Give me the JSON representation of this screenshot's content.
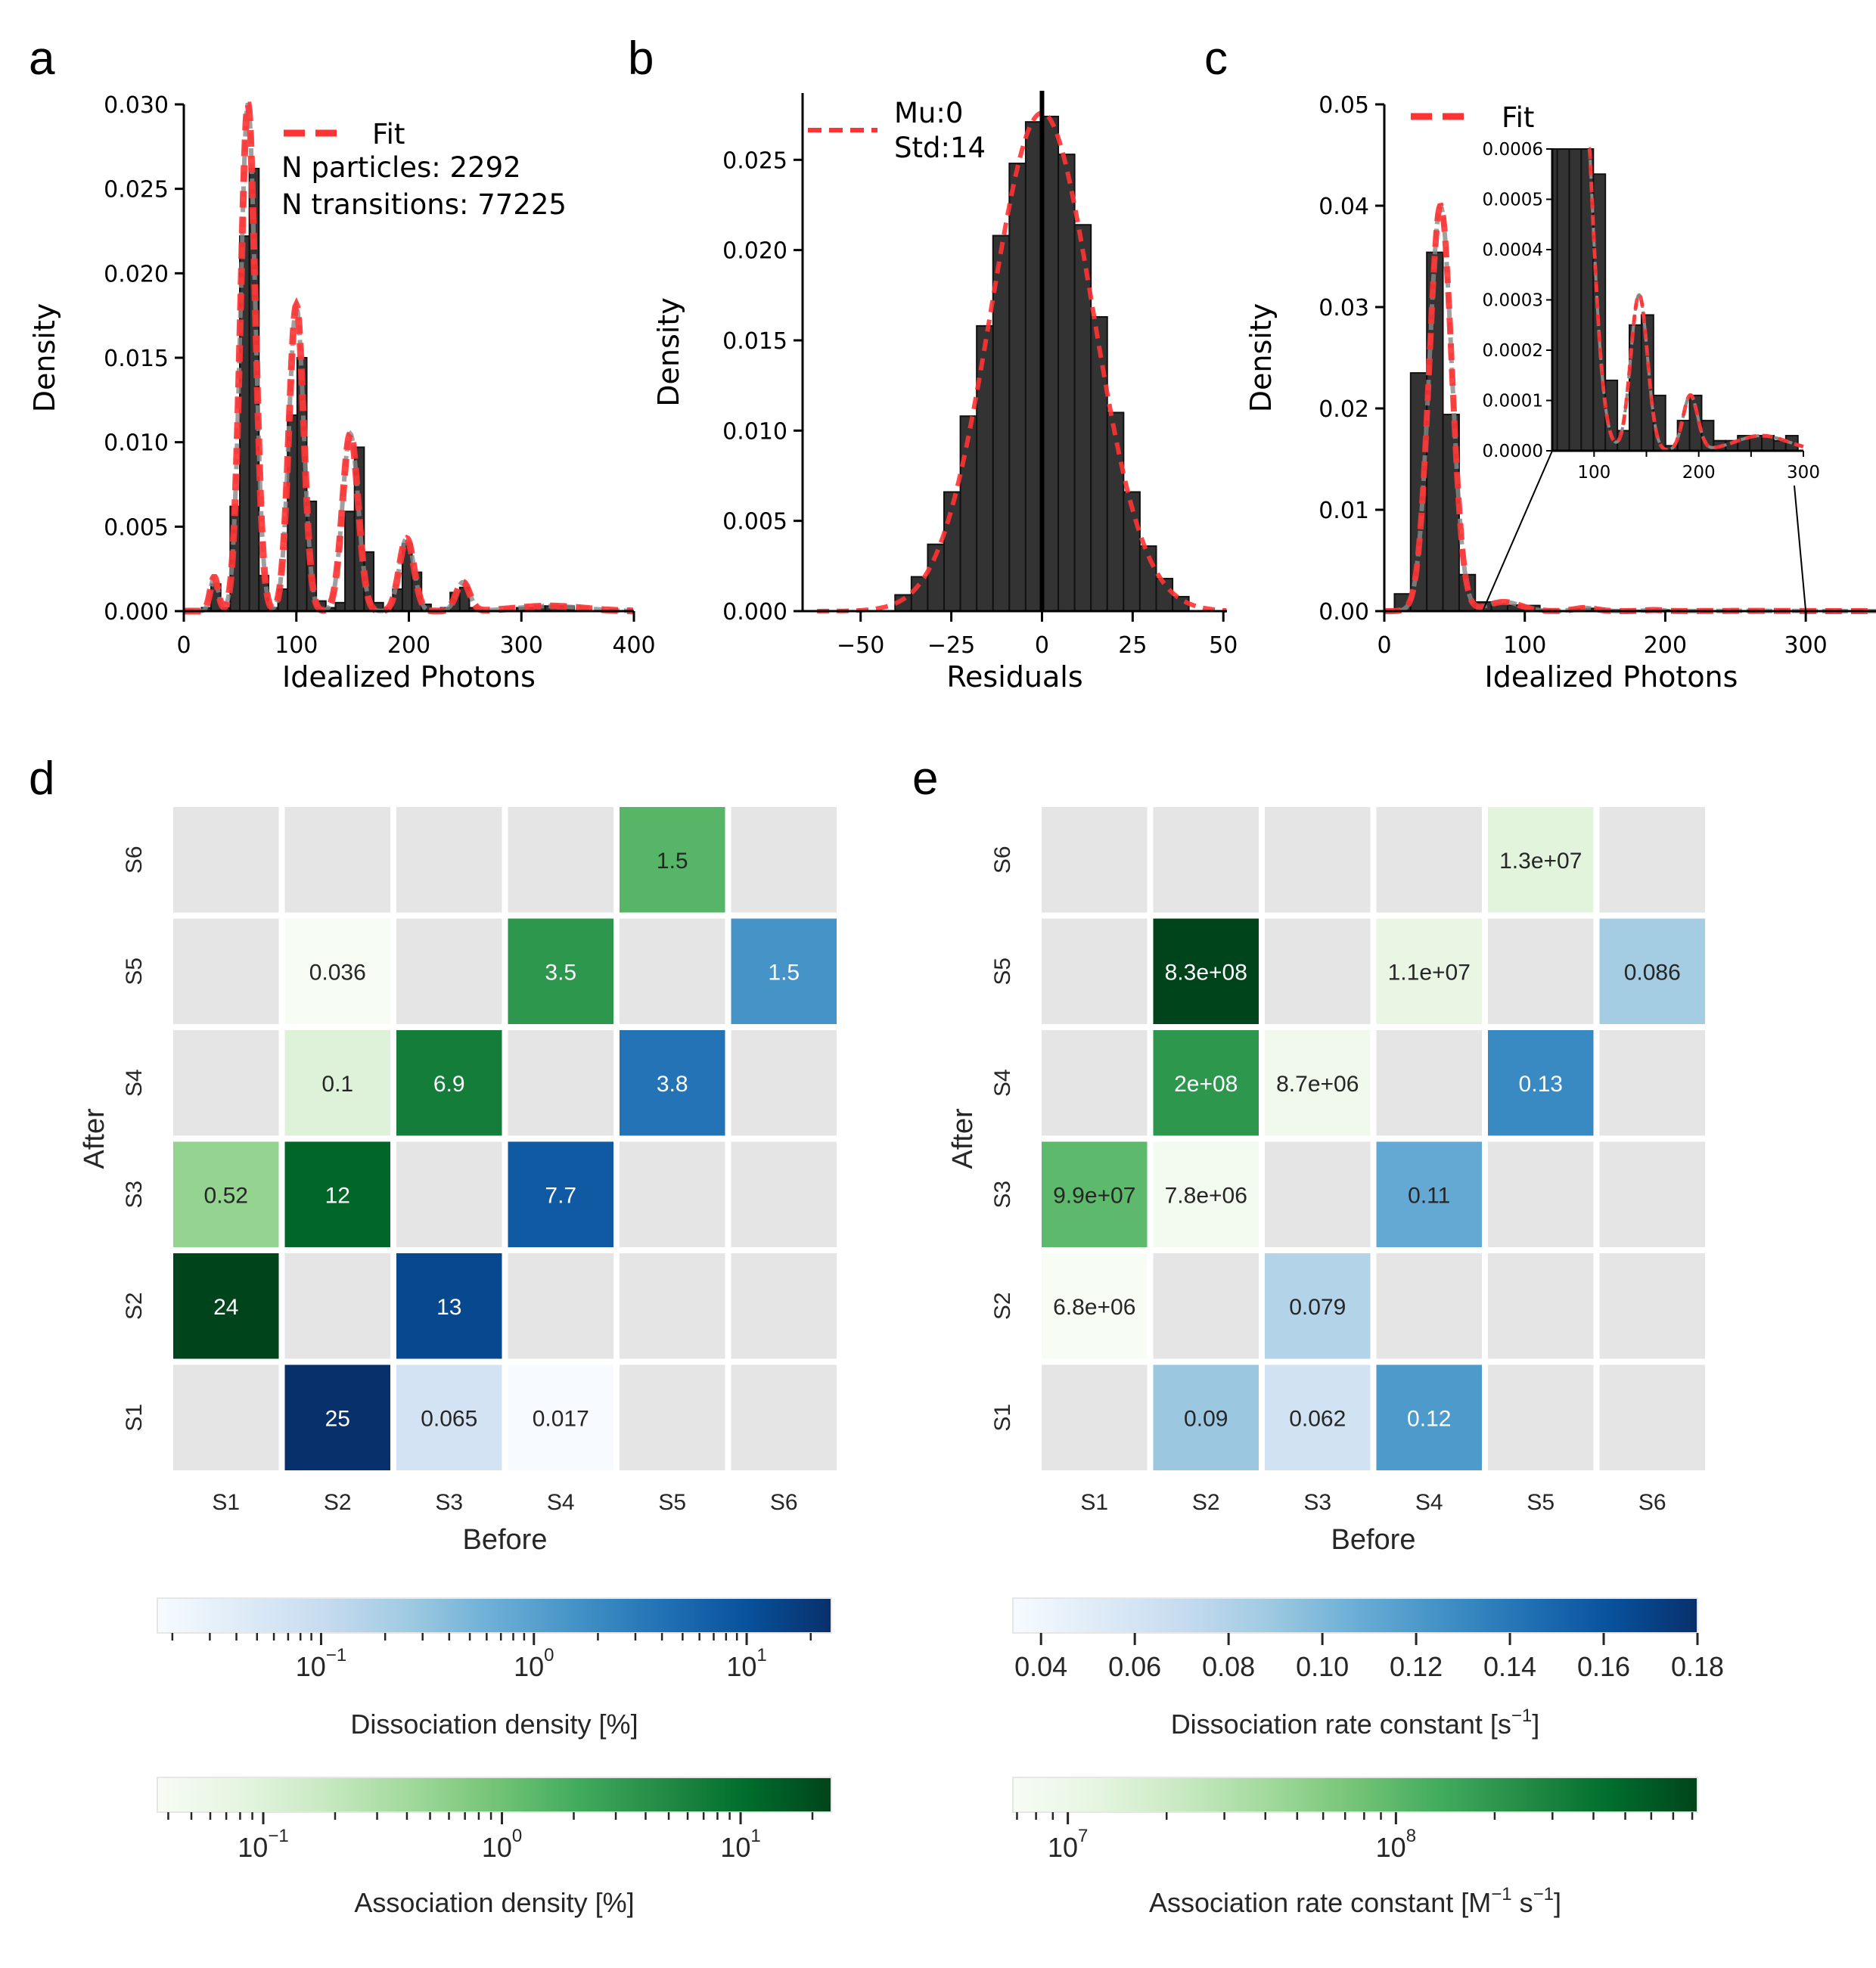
{
  "panels": {
    "a": "a",
    "b": "b",
    "c": "c",
    "d": "d",
    "e": "e"
  },
  "chart_data": [
    {
      "id": "a",
      "type": "bar",
      "title": "",
      "xlabel": "Idealized Photons",
      "ylabel": "Density",
      "xlim": [
        0,
        400
      ],
      "ylim": [
        0,
        0.03
      ],
      "xticks": [
        0,
        100,
        200,
        300,
        400
      ],
      "yticks": [
        "0.000",
        "0.005",
        "0.010",
        "0.015",
        "0.020",
        "0.025",
        "0.030"
      ],
      "legend": {
        "position": "top-right",
        "entries": [
          "Fit"
        ],
        "extra_text": [
          "N particles: 2292",
          "N transitions: 77225"
        ]
      },
      "bin_width": 8.5,
      "bins": [
        {
          "x": 20,
          "y": 0.0002
        },
        {
          "x": 28.5,
          "y": 0.0016
        },
        {
          "x": 37,
          "y": 0.0002
        },
        {
          "x": 45.5,
          "y": 0.0062
        },
        {
          "x": 54,
          "y": 0.0222
        },
        {
          "x": 62.5,
          "y": 0.0262
        },
        {
          "x": 71,
          "y": 0.0021
        },
        {
          "x": 79.5,
          "y": 0.0002
        },
        {
          "x": 88,
          "y": 0.0013
        },
        {
          "x": 96.5,
          "y": 0.0116
        },
        {
          "x": 105,
          "y": 0.015
        },
        {
          "x": 113.5,
          "y": 0.0065
        },
        {
          "x": 122,
          "y": 0.0006
        },
        {
          "x": 130.5,
          "y": 0.0002
        },
        {
          "x": 139,
          "y": 0.0005
        },
        {
          "x": 147.5,
          "y": 0.0059
        },
        {
          "x": 156,
          "y": 0.0097
        },
        {
          "x": 164.5,
          "y": 0.0035
        },
        {
          "x": 173,
          "y": 0.0005
        },
        {
          "x": 181.5,
          "y": 0.0002
        },
        {
          "x": 190,
          "y": 0.0013
        },
        {
          "x": 198.5,
          "y": 0.004
        },
        {
          "x": 207,
          "y": 0.0023
        },
        {
          "x": 215.5,
          "y": 0.0004
        },
        {
          "x": 224,
          "y": 0.0001
        },
        {
          "x": 232.5,
          "y": 0.0002
        },
        {
          "x": 241,
          "y": 0.0011
        },
        {
          "x": 249.5,
          "y": 0.0014
        },
        {
          "x": 258,
          "y": 0.0002
        },
        {
          "x": 300,
          "y": 0.0002
        },
        {
          "x": 308.5,
          "y": 0.0002
        },
        {
          "x": 317,
          "y": 0.0003
        },
        {
          "x": 325.5,
          "y": 0.0003
        },
        {
          "x": 334,
          "y": 0.0003
        },
        {
          "x": 342.5,
          "y": 0.0003
        }
      ],
      "fit": {
        "type": "gaussian-mixture",
        "components": [
          {
            "mu": 27,
            "sigma": 3.5,
            "amp": 0.002
          },
          {
            "mu": 57,
            "sigma": 6.5,
            "amp": 0.03
          },
          {
            "mu": 100,
            "sigma": 6.5,
            "amp": 0.0181
          },
          {
            "mu": 148,
            "sigma": 7,
            "amp": 0.0105
          },
          {
            "mu": 198,
            "sigma": 6.5,
            "amp": 0.0043
          },
          {
            "mu": 248,
            "sigma": 6,
            "amp": 0.0017
          },
          {
            "mu": 325,
            "sigma": 30,
            "amp": 0.0003
          }
        ]
      }
    },
    {
      "id": "b",
      "type": "bar",
      "title": "",
      "xlabel": "Residuals",
      "ylabel": "Density",
      "xlim": [
        -66,
        51
      ],
      "ylim": [
        0,
        0.0287
      ],
      "xticks": [
        "−50",
        "−25",
        "0",
        "25",
        "50"
      ],
      "xtick_values": [
        -50,
        -25,
        0,
        25,
        50
      ],
      "yticks": [
        "0.000",
        "0.005",
        "0.010",
        "0.015",
        "0.020",
        "0.025"
      ],
      "legend": {
        "position": "top-left",
        "entries": [
          "Mu:0",
          "Std:14"
        ]
      },
      "vline": 0,
      "bin_width": 4.5,
      "bins_start": -40.5,
      "values": [
        0.0009,
        0.0019,
        0.0037,
        0.0066,
        0.0108,
        0.0158,
        0.0208,
        0.0248,
        0.0271,
        0.0274,
        0.0253,
        0.0214,
        0.0163,
        0.011,
        0.0066,
        0.0036,
        0.0018,
        0.0008
      ],
      "fit": {
        "type": "gaussian",
        "mu": 0,
        "sigma": 14,
        "amp": 0.0276
      }
    },
    {
      "id": "c",
      "type": "bar",
      "title": "",
      "xlabel": "Idealized Photons",
      "ylabel": "Density",
      "xlim": [
        0,
        350
      ],
      "ylim": [
        0,
        0.05
      ],
      "xticks": [
        0,
        100,
        200,
        300
      ],
      "yticks": [
        "0.00",
        "0.01",
        "0.02",
        "0.03",
        "0.04",
        "0.05"
      ],
      "legend": {
        "position": "top-left",
        "entries": [
          "Fit"
        ]
      },
      "bin_width": 11.5,
      "bins": [
        {
          "x": 13,
          "y": 0.0017
        },
        {
          "x": 24.5,
          "y": 0.0235
        },
        {
          "x": 36,
          "y": 0.0354
        },
        {
          "x": 47.5,
          "y": 0.0194
        },
        {
          "x": 59,
          "y": 0.0036
        },
        {
          "x": 70.5,
          "y": 0.0009
        },
        {
          "x": 82,
          "y": 0.0007
        },
        {
          "x": 93.5,
          "y": 0.0006
        },
        {
          "x": 105,
          "y": 0.00055
        },
        {
          "x": 116.5,
          "y": 0.00014
        },
        {
          "x": 128,
          "y": 4e-05
        },
        {
          "x": 139.5,
          "y": 0.00025
        },
        {
          "x": 151,
          "y": 0.00027
        },
        {
          "x": 162.5,
          "y": 0.00011
        },
        {
          "x": 174,
          "y": 1e-05
        },
        {
          "x": 185.5,
          "y": 6e-05
        },
        {
          "x": 197,
          "y": 0.00011
        },
        {
          "x": 208.5,
          "y": 6e-05
        },
        {
          "x": 220,
          "y": 2e-05
        },
        {
          "x": 231.5,
          "y": 2e-05
        },
        {
          "x": 243,
          "y": 3e-05
        },
        {
          "x": 254.5,
          "y": 3e-05
        },
        {
          "x": 266,
          "y": 3e-05
        },
        {
          "x": 277.5,
          "y": 2e-05
        },
        {
          "x": 289,
          "y": 3e-05
        }
      ],
      "fit": {
        "type": "gaussian-mixture",
        "components": [
          {
            "mu": 40,
            "sigma": 8,
            "amp": 0.04
          },
          {
            "mu": 85,
            "sigma": 12,
            "amp": 0.0009
          },
          {
            "mu": 143,
            "sigma": 8,
            "amp": 0.00031
          },
          {
            "mu": 192,
            "sigma": 7,
            "amp": 0.00011
          },
          {
            "mu": 260,
            "sigma": 25,
            "amp": 3e-05
          }
        ]
      },
      "inset": {
        "xlim": [
          60,
          300
        ],
        "ylim": [
          0,
          0.0006
        ],
        "xticks": [
          100,
          200,
          300
        ],
        "yticks": [
          "0.0000",
          "0.0001",
          "0.0002",
          "0.0003",
          "0.0004",
          "0.0005",
          "0.0006"
        ]
      }
    },
    {
      "id": "d",
      "type": "heatmap",
      "xlabel": "Before",
      "ylabel": "After",
      "x_categories": [
        "S1",
        "S2",
        "S3",
        "S4",
        "S5",
        "S6"
      ],
      "y_categories_top_to_bottom": [
        "S6",
        "S5",
        "S4",
        "S3",
        "S2",
        "S1"
      ],
      "cells": [
        {
          "before": "S5",
          "after": "S6",
          "value": 1.5,
          "label": "1.5",
          "map": "association"
        },
        {
          "before": "S2",
          "after": "S5",
          "value": 0.036,
          "label": "0.036",
          "map": "association"
        },
        {
          "before": "S4",
          "after": "S5",
          "value": 3.5,
          "label": "3.5",
          "map": "association"
        },
        {
          "before": "S6",
          "after": "S5",
          "value": 1.5,
          "label": "1.5",
          "map": "dissociation"
        },
        {
          "before": "S2",
          "after": "S4",
          "value": 0.1,
          "label": "0.1",
          "map": "association"
        },
        {
          "before": "S3",
          "after": "S4",
          "value": 6.9,
          "label": "6.9",
          "map": "association"
        },
        {
          "before": "S5",
          "after": "S4",
          "value": 3.8,
          "label": "3.8",
          "map": "dissociation"
        },
        {
          "before": "S1",
          "after": "S3",
          "value": 0.52,
          "label": "0.52",
          "map": "association"
        },
        {
          "before": "S2",
          "after": "S3",
          "value": 12,
          "label": "12",
          "map": "association"
        },
        {
          "before": "S4",
          "after": "S3",
          "value": 7.7,
          "label": "7.7",
          "map": "dissociation"
        },
        {
          "before": "S1",
          "after": "S2",
          "value": 24,
          "label": "24",
          "map": "association"
        },
        {
          "before": "S3",
          "after": "S2",
          "value": 13,
          "label": "13",
          "map": "dissociation"
        },
        {
          "before": "S2",
          "after": "S1",
          "value": 25,
          "label": "25",
          "map": "dissociation"
        },
        {
          "before": "S3",
          "after": "S1",
          "value": 0.065,
          "label": "0.065",
          "map": "dissociation"
        },
        {
          "before": "S4",
          "after": "S1",
          "value": 0.017,
          "label": "0.017",
          "map": "dissociation"
        }
      ],
      "colorbars": [
        {
          "name": "dissociation",
          "label": "Dissociation density [%]",
          "scale": "log",
          "range": [
            0.017,
            25
          ],
          "cmap": "Blues",
          "ticks": [
            {
              "base": "10",
              "exp": "−1",
              "value": 0.1
            },
            {
              "base": "10",
              "exp": "0",
              "value": 1
            },
            {
              "base": "10",
              "exp": "1",
              "value": 10
            }
          ]
        },
        {
          "name": "association",
          "label": "Association density [%]",
          "scale": "log",
          "range": [
            0.036,
            24
          ],
          "cmap": "Greens",
          "ticks": [
            {
              "base": "10",
              "exp": "−1",
              "value": 0.1
            },
            {
              "base": "10",
              "exp": "0",
              "value": 1
            },
            {
              "base": "10",
              "exp": "1",
              "value": 10
            }
          ]
        }
      ]
    },
    {
      "id": "e",
      "type": "heatmap",
      "xlabel": "Before",
      "ylabel": "After",
      "x_categories": [
        "S1",
        "S2",
        "S3",
        "S4",
        "S5",
        "S6"
      ],
      "y_categories_top_to_bottom": [
        "S6",
        "S5",
        "S4",
        "S3",
        "S2",
        "S1"
      ],
      "cells": [
        {
          "before": "S5",
          "after": "S6",
          "value": 13000000.0,
          "label": "1.3e+07",
          "map": "association"
        },
        {
          "before": "S2",
          "after": "S5",
          "value": 830000000.0,
          "label": "8.3e+08",
          "map": "association"
        },
        {
          "before": "S4",
          "after": "S5",
          "value": 11000000.0,
          "label": "1.1e+07",
          "map": "association"
        },
        {
          "before": "S6",
          "after": "S5",
          "value": 0.086,
          "label": "0.086",
          "map": "dissociation"
        },
        {
          "before": "S2",
          "after": "S4",
          "value": 200000000.0,
          "label": "2e+08",
          "map": "association"
        },
        {
          "before": "S3",
          "after": "S4",
          "value": 8700000.0,
          "label": "8.7e+06",
          "map": "association"
        },
        {
          "before": "S5",
          "after": "S4",
          "value": 0.13,
          "label": "0.13",
          "map": "dissociation"
        },
        {
          "before": "S1",
          "after": "S3",
          "value": 99000000.0,
          "label": "9.9e+07",
          "map": "association"
        },
        {
          "before": "S2",
          "after": "S3",
          "value": 7800000.0,
          "label": "7.8e+06",
          "map": "association"
        },
        {
          "before": "S4",
          "after": "S3",
          "value": 0.11,
          "label": "0.11",
          "map": "dissociation"
        },
        {
          "before": "S1",
          "after": "S2",
          "value": 6800000.0,
          "label": "6.8e+06",
          "map": "association"
        },
        {
          "before": "S3",
          "after": "S2",
          "value": 0.079,
          "label": "0.079",
          "map": "dissociation"
        },
        {
          "before": "S2",
          "after": "S1",
          "value": 0.09,
          "label": "0.09",
          "map": "dissociation"
        },
        {
          "before": "S3",
          "after": "S1",
          "value": 0.062,
          "label": "0.062",
          "map": "dissociation"
        },
        {
          "before": "S4",
          "after": "S1",
          "value": 0.12,
          "label": "0.12",
          "map": "dissociation"
        }
      ],
      "colorbars": [
        {
          "name": "dissociation",
          "label": "Dissociation rate constant [s",
          "label_sup": "−1",
          "label_end": "]",
          "scale": "linear",
          "range": [
            0.034,
            0.18
          ],
          "cmap": "Blues",
          "ticks": [
            {
              "base": "0.04",
              "value": 0.04
            },
            {
              "base": "0.06",
              "value": 0.06
            },
            {
              "base": "0.08",
              "value": 0.08
            },
            {
              "base": "0.10",
              "value": 0.1
            },
            {
              "base": "0.12",
              "value": 0.12
            },
            {
              "base": "0.14",
              "value": 0.14
            },
            {
              "base": "0.16",
              "value": 0.16
            },
            {
              "base": "0.18",
              "value": 0.18
            }
          ]
        },
        {
          "name": "association",
          "label": "Association rate constant [M",
          "label_sup": "−1",
          "label_mid": " s",
          "label_sup2": "−1",
          "label_end": "]",
          "scale": "log",
          "range": [
            6800000.0,
            830000000.0
          ],
          "cmap": "Greens",
          "ticks": [
            {
              "base": "10",
              "exp": "7",
              "value": 10000000.0
            },
            {
              "base": "10",
              "exp": "8",
              "value": 100000000.0
            }
          ]
        }
      ]
    }
  ],
  "colors": {
    "bar": "#333333",
    "fit": "#ff3333",
    "fit_shadow": "#888888",
    "empty_cell": "#e5e5e5",
    "grid_gap": "#ffffff"
  }
}
